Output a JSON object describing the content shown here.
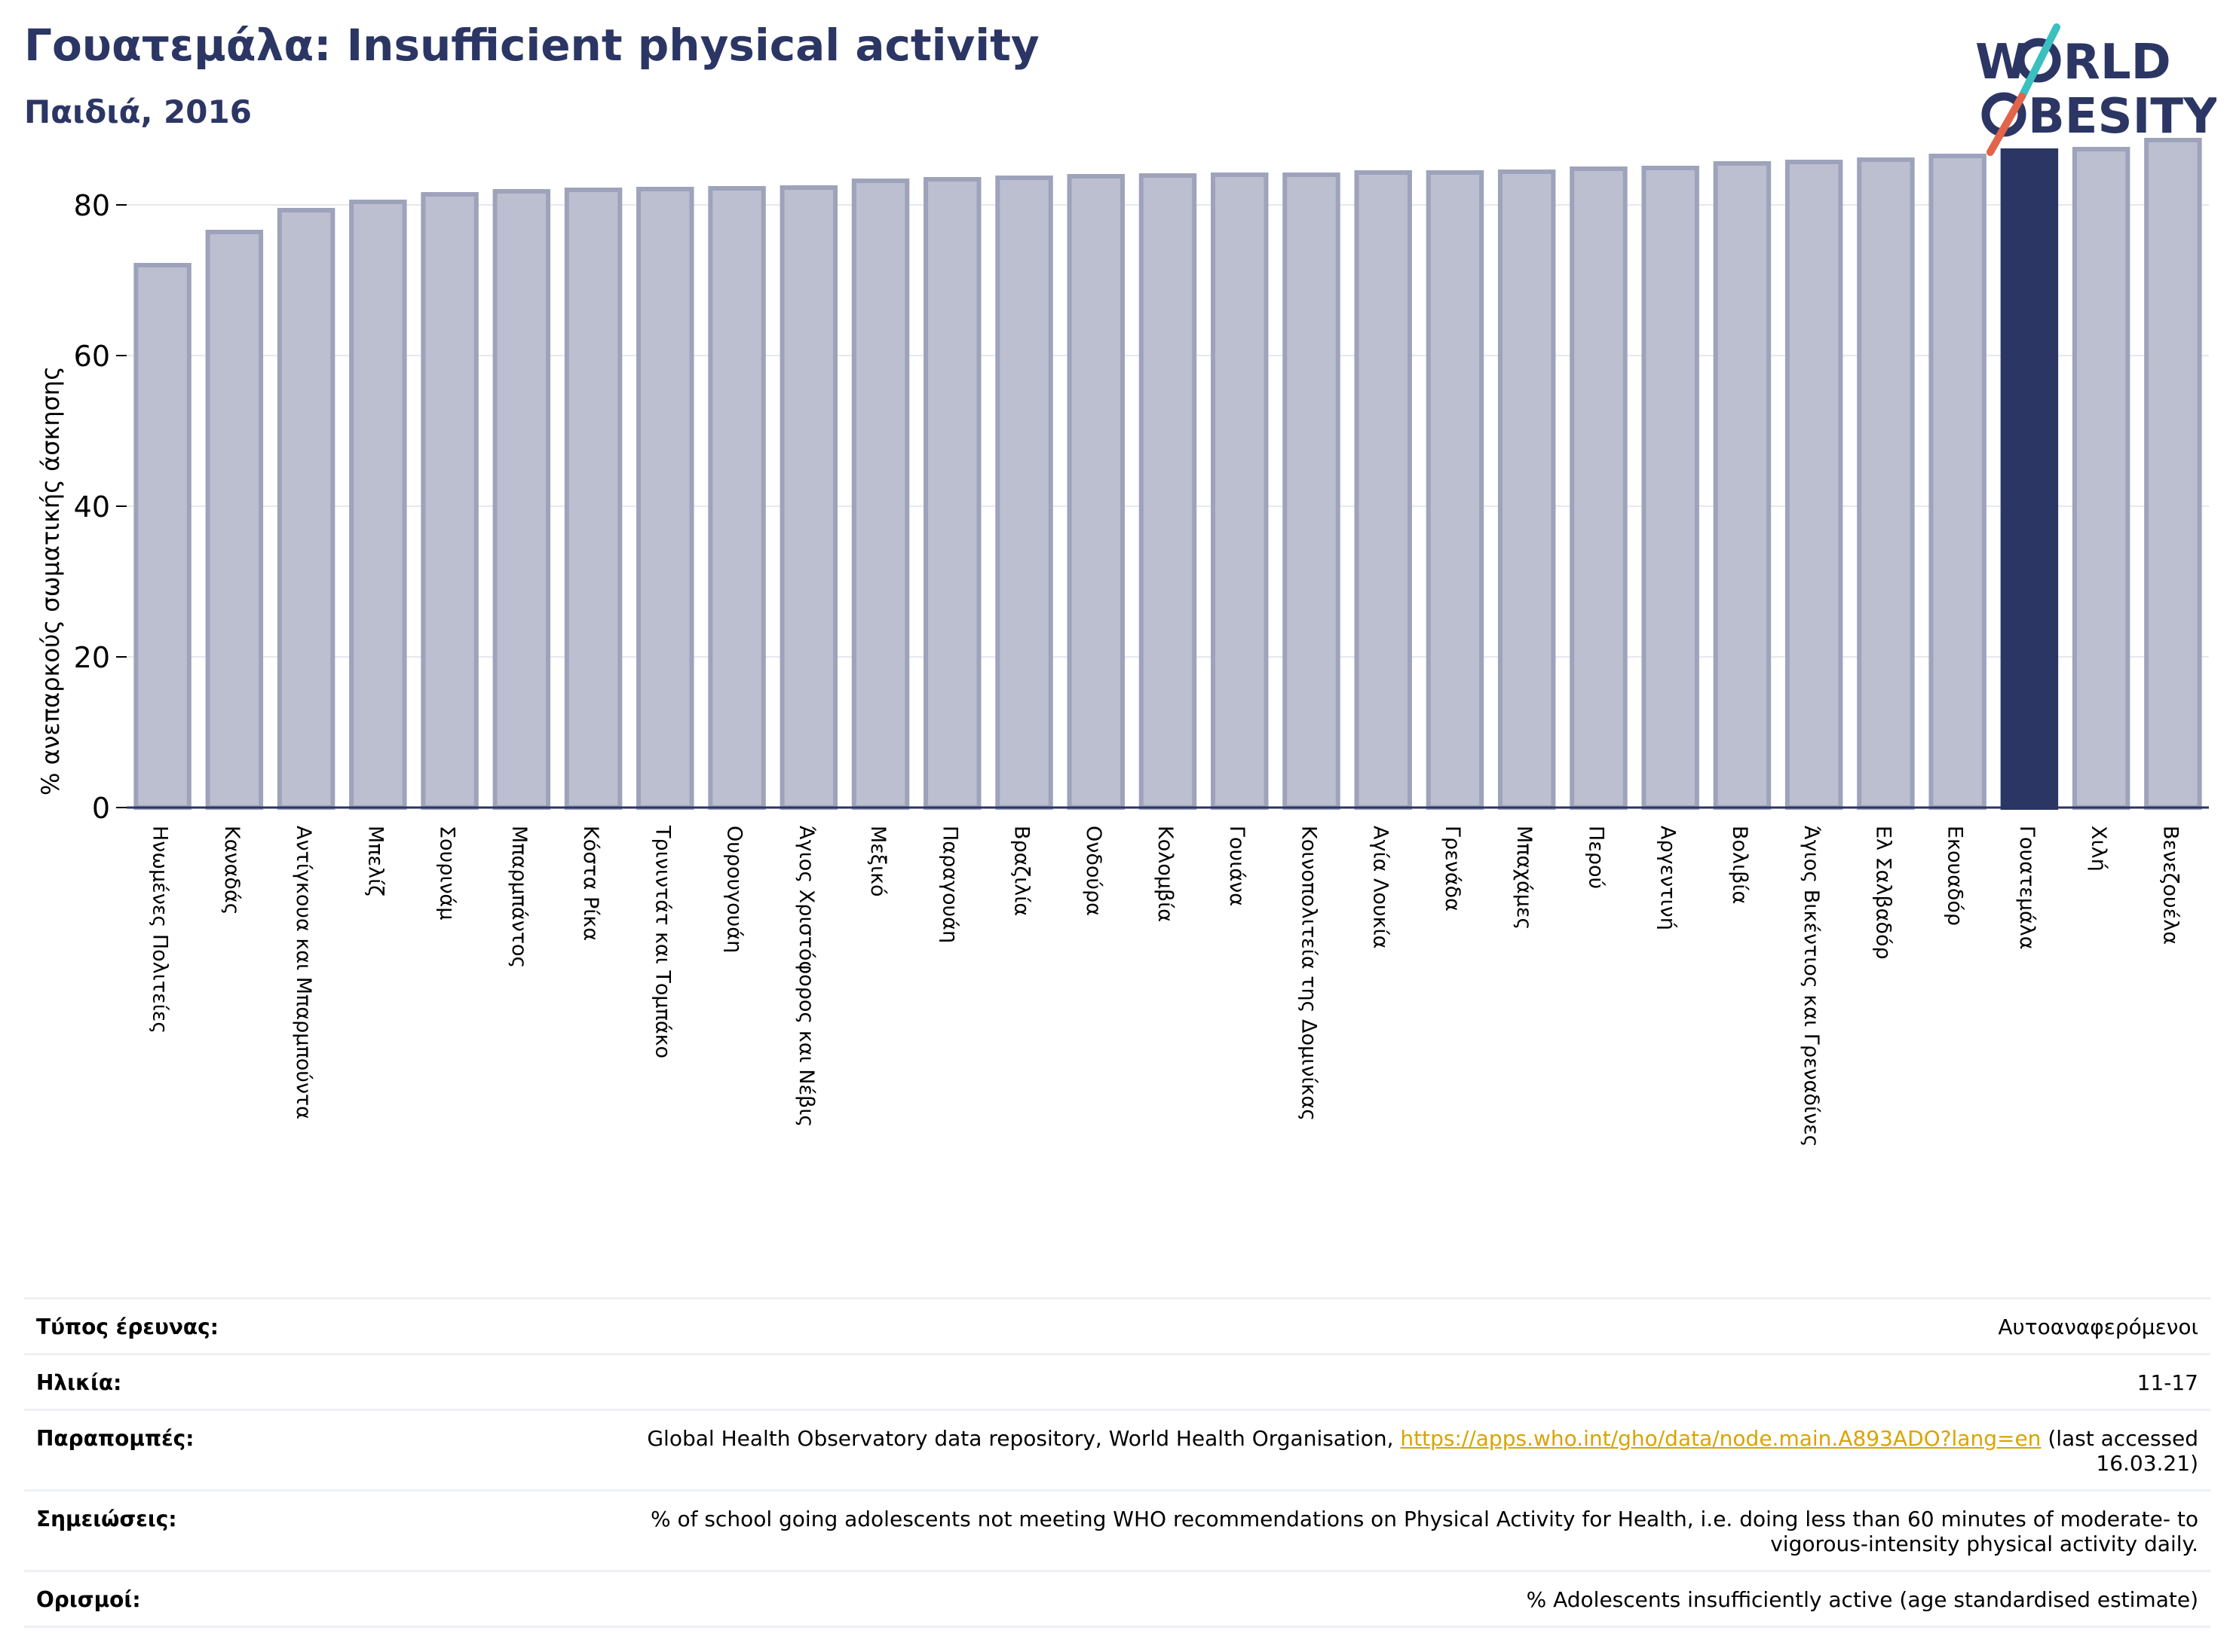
{
  "header": {
    "title": "Γουατεμάλα: Insufficient physical activity",
    "subtitle": "Παιδιά, 2016"
  },
  "logo": {
    "line1_pre": "W",
    "line1_post": "RLD",
    "line2_post": "BESITY",
    "icon": "world-obesity-logo",
    "colors": {
      "text": "#2b3664",
      "slash_top": "#3bbfbf",
      "slash_bottom": "#e2644a"
    }
  },
  "colors": {
    "bar_fill": "#bcbfcf",
    "bar_stroke": "#9ea3bb",
    "highlight_fill": "#2b3664",
    "axis": "#2b3664",
    "grid": "#e6e8ee"
  },
  "chart_data": {
    "type": "bar",
    "title": "Γουατεμάλα: Insufficient physical activity",
    "subtitle": "Παιδιά, 2016",
    "xlabel": "",
    "ylabel": "% ανεπαρκούς σωματικής άσκησης",
    "ylim": [
      0,
      90
    ],
    "yticks": [
      0,
      20,
      40,
      60,
      80
    ],
    "grid": true,
    "highlight": "Γουατεμάλα",
    "categories": [
      "Ηνωμένες Πολιτείες",
      "Καναδάς",
      "Αντίγκουα και Μπαρμπούντα",
      "Μπελίζ",
      "Σουρινάμ",
      "Μπαρμπάντος",
      "Κόστα Ρίκα",
      "Τρινιντάτ και Τομπάκο",
      "Ουρουγουάη",
      "Άγιος Χριστόφορος και Νέβις",
      "Μεξικό",
      "Παραγουάη",
      "Βραζιλία",
      "Ονδούρα",
      "Κολομβία",
      "Γουιάνα",
      "Κοινοπολιτεία της Δομινίκας",
      "Αγία Λουκία",
      "Γρενάδα",
      "Μπαχάμες",
      "Περού",
      "Αργεντινή",
      "Βολιβία",
      "Άγιος Βικέντιος και Γρεναδίνες",
      "Ελ Σαλβαδόρ",
      "Εκουαδόρ",
      "Γουατεμάλα",
      "Χιλή",
      "Βενεζουέλα"
    ],
    "values": [
      72.0,
      76.4,
      79.3,
      80.4,
      81.4,
      81.8,
      82.0,
      82.1,
      82.2,
      82.3,
      83.2,
      83.4,
      83.6,
      83.8,
      83.9,
      84.0,
      84.0,
      84.3,
      84.3,
      84.4,
      84.8,
      84.9,
      85.5,
      85.7,
      86.0,
      86.5,
      87.2,
      87.4,
      88.6
    ]
  },
  "info": {
    "rows": [
      {
        "label": "Τύπος έρευνας:",
        "value": "Αυτοαναφερόμενοι"
      },
      {
        "label": "Ηλικία:",
        "value": "11-17"
      },
      {
        "label": "Παραπομπές:",
        "value_pre": "Global Health Observatory data repository, World Health Organisation, ",
        "link": "https://apps.who.int/gho/data/node.main.A893ADO?lang=en",
        "value_post": " (last accessed 16.03.21)"
      },
      {
        "label": "Σημειώσεις:",
        "value": "% of school going adolescents not meeting WHO recommendations on Physical Activity for Health, i.e. doing less than 60 minutes of moderate- to vigorous-intensity physical activity daily."
      },
      {
        "label": "Ορισμοί:",
        "value": "% Adolescents insufficiently active (age standardised estimate)"
      }
    ]
  }
}
